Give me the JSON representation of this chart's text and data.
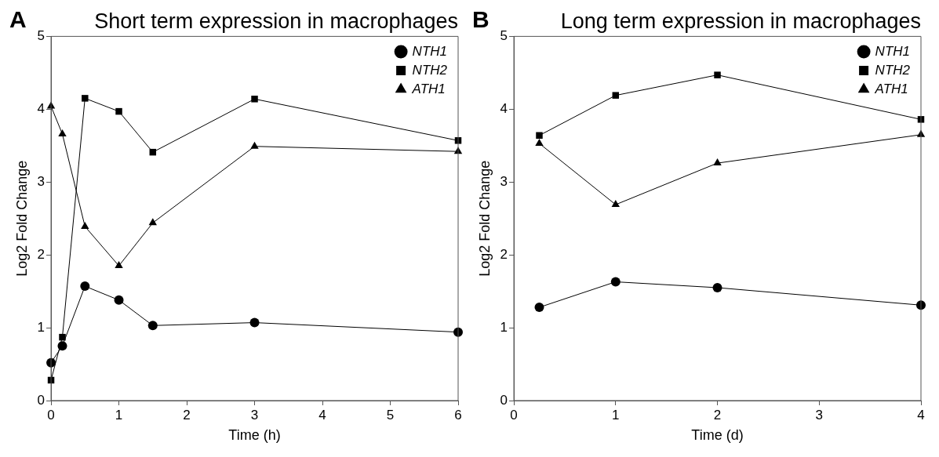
{
  "chart_data": [
    {
      "type": "line",
      "title": "Short term expression in macrophages",
      "annotations": [
        "A"
      ],
      "xlabel": "Time (h)",
      "ylabel": "Log2 Fold Change",
      "xlim": [
        0,
        6
      ],
      "xticks": [
        0,
        1,
        2,
        3,
        4,
        5,
        6
      ],
      "ylim": [
        0,
        5
      ],
      "yticks": [
        0,
        1,
        2,
        3,
        4,
        5
      ],
      "grid": false,
      "legend": "top right",
      "line_style": "solid",
      "x": [
        0,
        0.167,
        0.5,
        1,
        1.5,
        3,
        6
      ],
      "series": [
        {
          "name": "NTH1",
          "color": "#000000",
          "marker": "circle",
          "values": [
            0.52,
            0.75,
            1.57,
            1.38,
            1.03,
            1.07,
            0.94
          ]
        },
        {
          "name": "NTH2",
          "color": "#000000",
          "marker": "square",
          "values": [
            0.28,
            0.87,
            4.15,
            3.97,
            3.41,
            4.14,
            3.57
          ]
        },
        {
          "name": "ATH1",
          "color": "#000000",
          "marker": "triangle",
          "values": [
            4.04,
            3.66,
            2.39,
            1.85,
            2.44,
            3.49,
            3.42
          ]
        }
      ]
    },
    {
      "type": "line",
      "title": "Long term expression in macrophages",
      "annotations": [
        "B"
      ],
      "xlabel": "Time (d)",
      "ylabel": "Log2 Fold Change",
      "xlim": [
        0,
        4
      ],
      "xticks": [
        0,
        1,
        2,
        3,
        4
      ],
      "ylim": [
        0,
        5
      ],
      "yticks": [
        0,
        1,
        2,
        3,
        4,
        5
      ],
      "grid": false,
      "legend": "top right",
      "line_style": "solid",
      "x": [
        0.25,
        1,
        2,
        4
      ],
      "series": [
        {
          "name": "NTH1",
          "color": "#000000",
          "marker": "circle",
          "values": [
            1.28,
            1.63,
            1.55,
            1.31
          ]
        },
        {
          "name": "NTH2",
          "color": "#000000",
          "marker": "square",
          "values": [
            3.64,
            4.19,
            4.47,
            3.86
          ]
        },
        {
          "name": "ATH1",
          "color": "#000000",
          "marker": "triangle",
          "values": [
            3.53,
            2.69,
            3.26,
            3.65
          ]
        }
      ]
    }
  ]
}
